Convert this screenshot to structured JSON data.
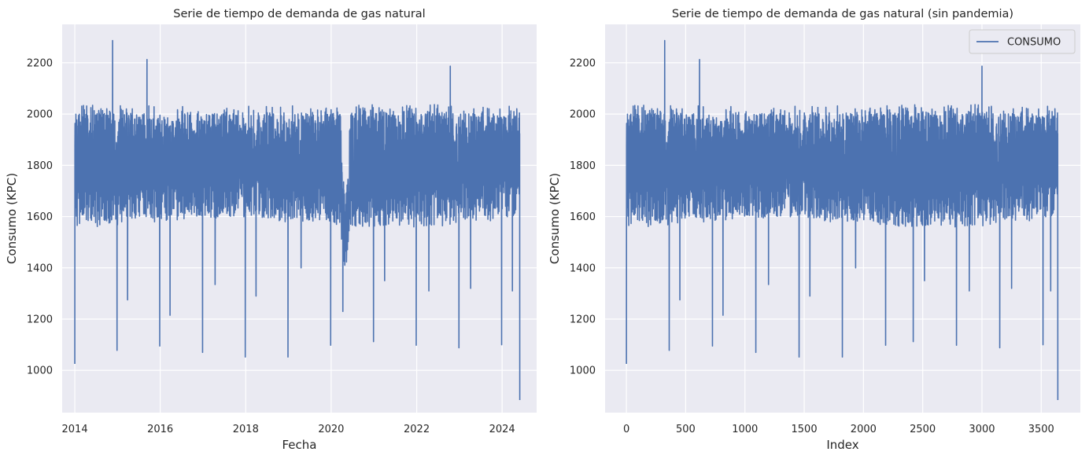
{
  "theme": {
    "plot_bg": "#eaeaf2",
    "grid_color": "#ffffff",
    "line_color": "#4c72b0",
    "text_color": "#262626"
  },
  "chart_data": [
    {
      "type": "line",
      "title": "Serie de tiempo de demanda de gas natural",
      "xlabel": "Fecha",
      "ylabel": "Consumo (KPC)",
      "x_kind": "date",
      "xlim": [
        "2013-09-15",
        "2024-10-22"
      ],
      "ylim": [
        835,
        2350
      ],
      "x_ticks": [
        "2014",
        "2016",
        "2018",
        "2020",
        "2022",
        "2024"
      ],
      "y_ticks": [
        1000,
        1200,
        1400,
        1600,
        1800,
        2000,
        2200
      ],
      "grid": true,
      "legend": null,
      "x_range": [
        "2014-01-01",
        "2024-05-31"
      ],
      "series": [
        {
          "description": "daily natural gas consumption, ~3800 points",
          "typical_band": [
            1550,
            2100
          ],
          "peaks": [
            {
              "x": "2014-11-20",
              "y": 2287
            },
            {
              "x": "2015-09-10",
              "y": 2213
            },
            {
              "x": "2022-10-15",
              "y": 2187
            }
          ],
          "dips": [
            {
              "x": "2014-01-01",
              "y": 1025
            },
            {
              "x": "2014-12-28",
              "y": 1078
            },
            {
              "x": "2015-03-28",
              "y": 1275
            },
            {
              "x": "2015-12-28",
              "y": 1095
            },
            {
              "x": "2016-03-25",
              "y": 1215
            },
            {
              "x": "2016-12-28",
              "y": 1070
            },
            {
              "x": "2017-04-14",
              "y": 1335
            },
            {
              "x": "2017-12-28",
              "y": 1052
            },
            {
              "x": "2018-03-30",
              "y": 1290
            },
            {
              "x": "2018-12-28",
              "y": 1052
            },
            {
              "x": "2019-04-19",
              "y": 1400
            },
            {
              "x": "2019-12-28",
              "y": 1098
            },
            {
              "x": "2020-04-10",
              "y": 1230
            },
            {
              "x": "2020-12-28",
              "y": 1112
            },
            {
              "x": "2021-04-02",
              "y": 1350
            },
            {
              "x": "2021-12-28",
              "y": 1098
            },
            {
              "x": "2022-04-15",
              "y": 1310
            },
            {
              "x": "2022-12-28",
              "y": 1088
            },
            {
              "x": "2023-04-07",
              "y": 1320
            },
            {
              "x": "2023-12-28",
              "y": 1100
            },
            {
              "x": "2024-03-29",
              "y": 1310
            },
            {
              "x": "2024-05-31",
              "y": 884
            }
          ],
          "pandemic_dip": {
            "start": "2020-03-20",
            "end": "2020-07-15",
            "low": 1230
          }
        }
      ]
    },
    {
      "type": "line",
      "title": "Serie de tiempo de demanda de gas natural (sin pandemia)",
      "xlabel": "Index",
      "ylabel": "Consumo (KPC)",
      "x_kind": "number",
      "xlim": [
        -180,
        3830
      ],
      "ylim": [
        835,
        2350
      ],
      "x_ticks": [
        0,
        500,
        1000,
        1500,
        2000,
        2500,
        3000,
        3500
      ],
      "y_ticks": [
        1000,
        1200,
        1400,
        1600,
        1800,
        2000,
        2200
      ],
      "grid": true,
      "legend": {
        "position": "upper right",
        "entries": [
          "CONSUMO"
        ]
      },
      "x_range": [
        0,
        3640
      ],
      "series": [
        {
          "name": "CONSUMO",
          "description": "same daily series with pandemic period removed, ~3640 points",
          "typical_band": [
            1550,
            2100
          ],
          "peaks": [
            {
              "x": 323,
              "y": 2287
            },
            {
              "x": 617,
              "y": 2213
            },
            {
              "x": 3000,
              "y": 2187
            }
          ],
          "dips": [
            {
              "x": 0,
              "y": 1025
            },
            {
              "x": 361,
              "y": 1078
            },
            {
              "x": 451,
              "y": 1275
            },
            {
              "x": 726,
              "y": 1095
            },
            {
              "x": 815,
              "y": 1215
            },
            {
              "x": 1092,
              "y": 1070
            },
            {
              "x": 1199,
              "y": 1335
            },
            {
              "x": 1457,
              "y": 1052
            },
            {
              "x": 1548,
              "y": 1290
            },
            {
              "x": 1822,
              "y": 1052
            },
            {
              "x": 1934,
              "y": 1400
            },
            {
              "x": 2187,
              "y": 1098
            },
            {
              "x": 2420,
              "y": 1112
            },
            {
              "x": 2515,
              "y": 1350
            },
            {
              "x": 2785,
              "y": 1098
            },
            {
              "x": 2893,
              "y": 1310
            },
            {
              "x": 3150,
              "y": 1088
            },
            {
              "x": 3250,
              "y": 1320
            },
            {
              "x": 3515,
              "y": 1100
            },
            {
              "x": 3580,
              "y": 1310
            },
            {
              "x": 3640,
              "y": 884
            }
          ]
        }
      ]
    }
  ]
}
